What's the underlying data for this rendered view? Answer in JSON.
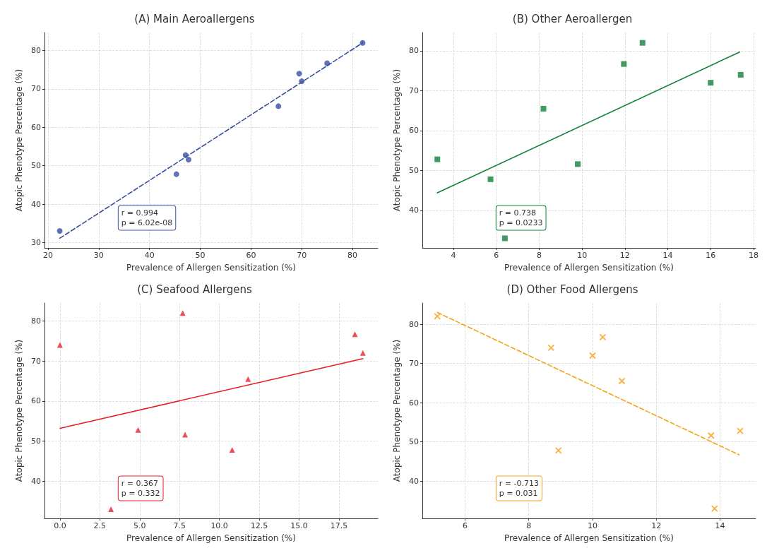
{
  "chart_data": [
    {
      "type": "scatter",
      "title": "(A) Main Aeroallergens",
      "xlabel": "Prevalence of Allergen Sensitization (%)",
      "ylabel": "Atopic Phenotype Percentage (%)",
      "annotations": [
        "r = 0.994\np = 6.02e-08"
      ],
      "grid": true,
      "xlim": [
        19.3,
        85
      ],
      "xticks": [
        20,
        30,
        40,
        50,
        60,
        70,
        80
      ],
      "ylim": [
        28.6,
        84.7
      ],
      "yticks": [
        30,
        40,
        50,
        60,
        70,
        80
      ],
      "series": [
        {
          "type": "scatter",
          "marker": "circle",
          "color": "#3a4fa3",
          "x": [
            22.3,
            45.3,
            47.1,
            47.7,
            65.4,
            69.5,
            70,
            75,
            82
          ],
          "values": [
            33,
            47.8,
            52.8,
            51.6,
            65.5,
            74,
            72,
            76.7,
            82
          ]
        },
        {
          "type": "line",
          "marker": "none",
          "line_style": "dashed",
          "color": "#3a4fa3",
          "x": [
            22.3,
            82
          ],
          "values": [
            31.1,
            82
          ]
        }
      ]
    },
    {
      "type": "scatter",
      "title": "(B) Other Aeroallergen",
      "xlabel": "Prevalence of Allergen Sensitization (%)",
      "ylabel": "Atopic Phenotype Percentage (%)",
      "annotations": [
        "r = 0.738\np = 0.0233"
      ],
      "grid": true,
      "xlim": [
        2.55,
        18.1
      ],
      "xticks": [
        4,
        6,
        8,
        10,
        12,
        14,
        16,
        18
      ],
      "ylim": [
        30.6,
        84.6
      ],
      "yticks": [
        40,
        50,
        60,
        70,
        80
      ],
      "series": [
        {
          "type": "scatter",
          "marker": "square",
          "color": "#12823a",
          "x": [
            3.25,
            5.73,
            6.4,
            8.2,
            9.8,
            11.95,
            12.82,
            16,
            17.4
          ],
          "values": [
            52.8,
            47.8,
            33,
            65.5,
            51.6,
            76.7,
            82,
            72,
            74
          ]
        },
        {
          "type": "line",
          "marker": "none",
          "line_style": "solid",
          "color": "#12823a",
          "x": [
            3.25,
            17.35
          ],
          "values": [
            44.4,
            79.7
          ]
        }
      ]
    },
    {
      "type": "scatter",
      "title": "(C) Seafood Allergens",
      "xlabel": "Prevalence of Allergen Sensitization (%)",
      "ylabel": "Atopic Phenotype Percentage (%)",
      "annotations": [
        "r = 0.367\np = 0.332"
      ],
      "grid": true,
      "xlim": [
        -0.97,
        19.94
      ],
      "xticks": [
        {
          "value": 0,
          "label": "0.0"
        },
        2.5,
        {
          "value": 5,
          "label": "5.0"
        },
        7.5,
        {
          "value": 10,
          "label": "10.0"
        },
        12.5,
        {
          "value": 15,
          "label": "15.0"
        },
        17.5
      ],
      "ylim": [
        30.7,
        84.5
      ],
      "yticks": [
        40,
        50,
        60,
        70,
        80
      ],
      "series": [
        {
          "type": "scatter",
          "marker": "triangle",
          "color": "#e8202a",
          "x": [
            0,
            3.2,
            4.9,
            7.7,
            7.85,
            10.8,
            11.8,
            18.5,
            19
          ],
          "values": [
            74,
            33,
            52.8,
            82,
            51.6,
            47.8,
            65.5,
            76.7,
            72
          ]
        },
        {
          "type": "line",
          "marker": "none",
          "line_style": "solid",
          "color": "#e8202a",
          "x": [
            0,
            19
          ],
          "values": [
            53.2,
            70.6
          ]
        }
      ]
    },
    {
      "type": "scatter",
      "title": "(D) Other Food Allergens",
      "xlabel": "Prevalence of Allergen Sensitization (%)",
      "ylabel": "Atopic Phenotype Percentage (%)",
      "annotations": [
        "r = -0.713\np = 0.031"
      ],
      "grid": true,
      "xlim": [
        4.66,
        15.12
      ],
      "xticks": [
        6,
        8,
        10,
        12,
        14
      ],
      "ylim": [
        30.5,
        85.4
      ],
      "yticks": [
        40,
        50,
        60,
        70,
        80
      ],
      "series": [
        {
          "type": "scatter",
          "marker": "cross",
          "color": "#f5a31a",
          "x": [
            5.13,
            8.7,
            8.93,
            10,
            10.32,
            10.92,
            13.72,
            13.83,
            14.63
          ],
          "values": [
            82,
            74,
            47.8,
            72,
            76.7,
            65.5,
            51.6,
            33,
            52.8
          ]
        },
        {
          "type": "line",
          "marker": "none",
          "line_style": "dashed",
          "color": "#f5a31a",
          "x": [
            5.13,
            14.6
          ],
          "values": [
            83,
            46.7
          ]
        }
      ]
    }
  ]
}
